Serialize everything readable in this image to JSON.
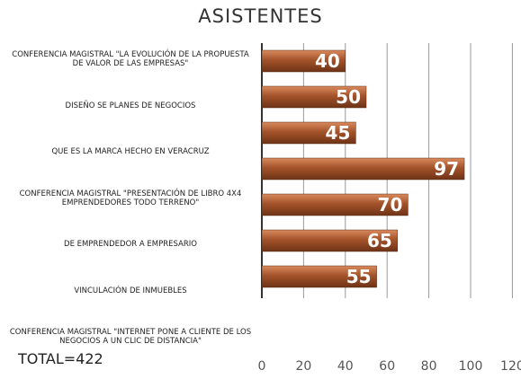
{
  "chart_data": {
    "type": "bar",
    "orientation": "horizontal",
    "title": "ASISTENTES",
    "categories": [
      "CONFERENCIA MAGISTRAL \"LA EVOLUCIÓN DE LA PROPUESTA DE VALOR DE LAS EMPRESAS\"",
      "DISEÑO SE PLANES DE NEGOCIOS",
      "QUE ES LA MARCA HECHO EN VERACRUZ",
      "CONFERENCIA MAGISTRAL \"PRESENTACIÓN DE LIBRO 4X4 EMPRENDEDORES TODO TERRENO\"",
      "DE EMPRENDEDOR A EMPRESARIO",
      "VINCULACIÓN DE INMUEBLES",
      "CONFERENCIA MAGISTRAL \"INTERNET PONE A CLIENTE DE LOS NEGOCIOS A UN CLIC DE DISTANCIA\""
    ],
    "values": [
      40,
      50,
      45,
      97,
      70,
      65,
      55
    ],
    "color": "#a4532a",
    "xlim": [
      0,
      120
    ],
    "xticks": [
      0,
      20,
      40,
      60,
      80,
      100,
      120
    ],
    "grid": true,
    "annotation": "TOTAL=422"
  }
}
